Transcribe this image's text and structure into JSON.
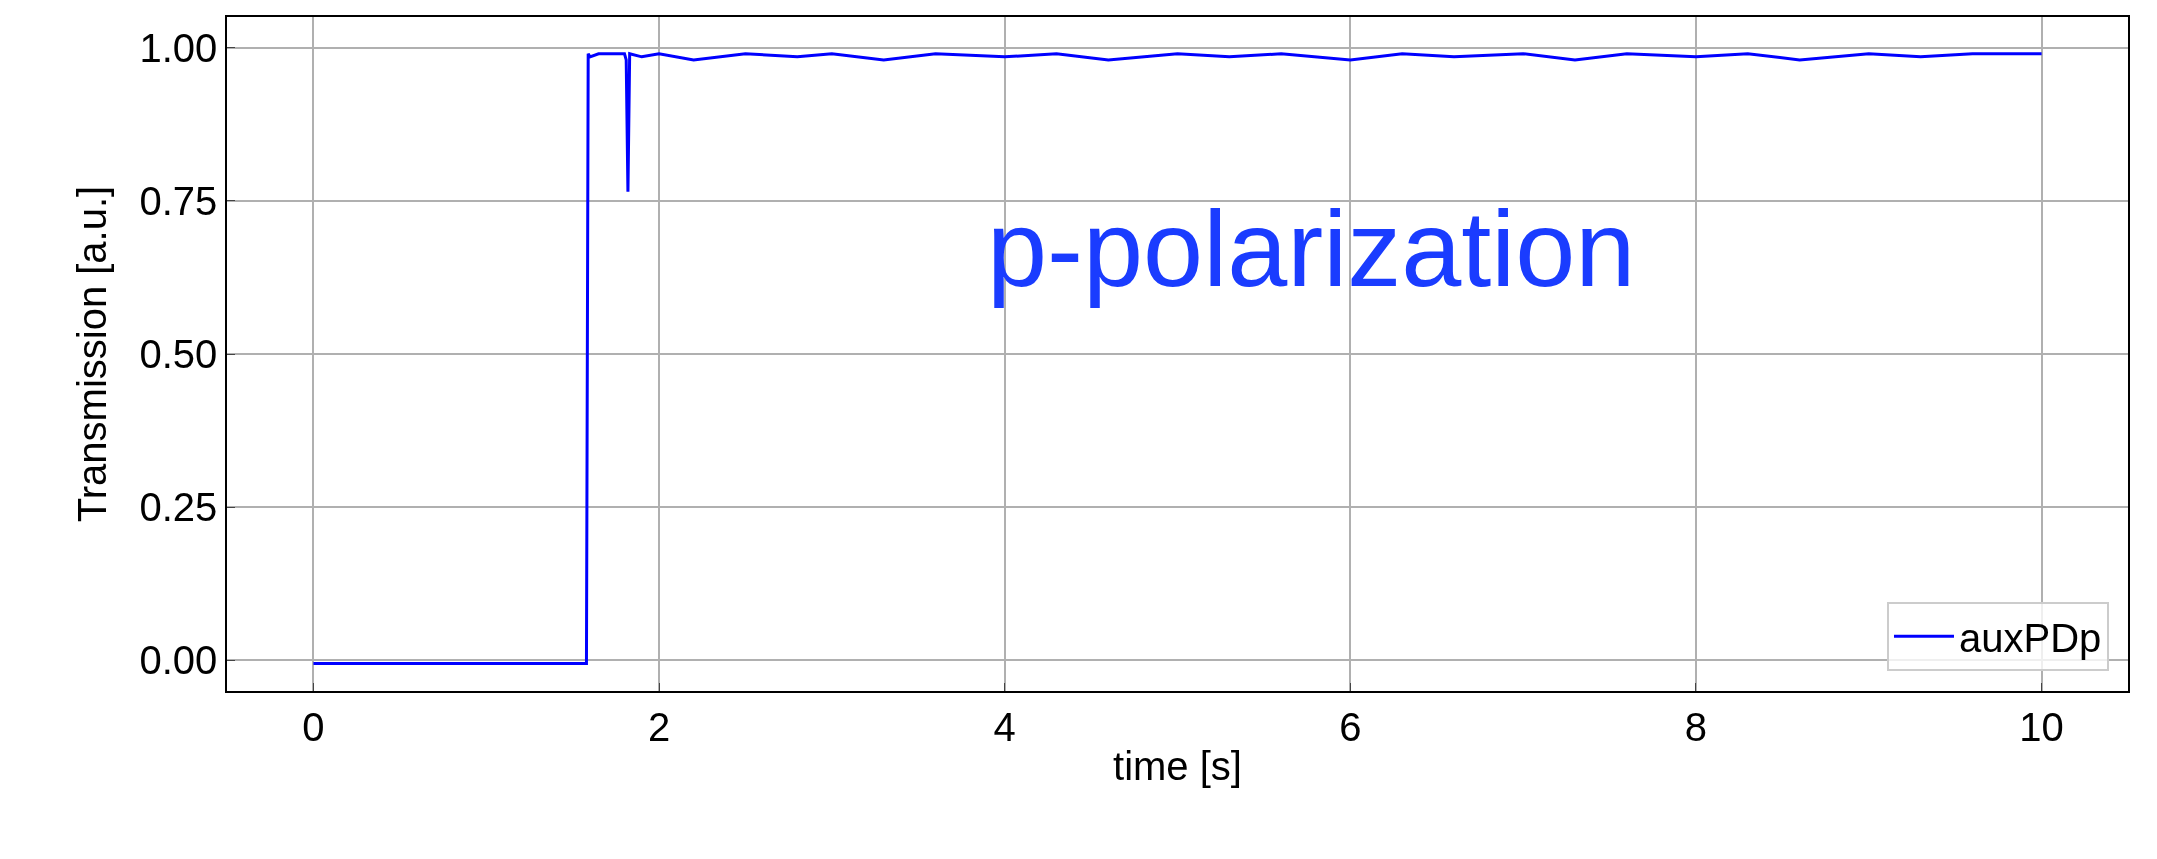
{
  "chart_data": {
    "type": "line",
    "xlabel": "time [s]",
    "ylabel": "Transmission [a.u.]",
    "x": [
      0,
      0.5,
      1.0,
      1.5,
      1.58,
      1.59,
      1.6,
      1.65,
      1.7,
      1.8,
      1.81,
      1.82,
      1.83,
      1.9,
      2.0,
      2.2,
      2.5,
      2.8,
      3.0,
      3.3,
      3.6,
      4.0,
      4.3,
      4.6,
      5.0,
      5.3,
      5.6,
      6.0,
      6.3,
      6.6,
      7.0,
      7.3,
      7.6,
      8.0,
      8.3,
      8.6,
      9.0,
      9.3,
      9.6,
      10.0
    ],
    "series": [
      {
        "name": "auxPDp",
        "color": "#0000ff",
        "values": [
          -0.005,
          -0.005,
          -0.005,
          -0.005,
          -0.005,
          0.99,
          0.985,
          0.99,
          0.99,
          0.99,
          0.98,
          0.765,
          0.99,
          0.985,
          0.99,
          0.98,
          0.99,
          0.985,
          0.99,
          0.98,
          0.99,
          0.985,
          0.99,
          0.98,
          0.99,
          0.985,
          0.99,
          0.98,
          0.99,
          0.985,
          0.99,
          0.98,
          0.99,
          0.985,
          0.99,
          0.98,
          0.99,
          0.985,
          0.99,
          0.99
        ]
      }
    ],
    "xlim": [
      -0.5,
      10.5
    ],
    "ylim": [
      -0.05,
      1.05
    ],
    "xticks": [
      0,
      2,
      4,
      6,
      8,
      10
    ],
    "yticks": [
      {
        "value": 0,
        "label": "0.00"
      },
      {
        "value": 0.25,
        "label": "0.25"
      },
      {
        "value": 0.5,
        "label": "0.50"
      },
      {
        "value": 0.75,
        "label": "0.75"
      },
      {
        "value": 1.0,
        "label": "1.00"
      }
    ],
    "annotations": [
      "p-polarization"
    ],
    "grid": true,
    "legend": "bottom right",
    "marker": "none",
    "line_style": "solid"
  }
}
